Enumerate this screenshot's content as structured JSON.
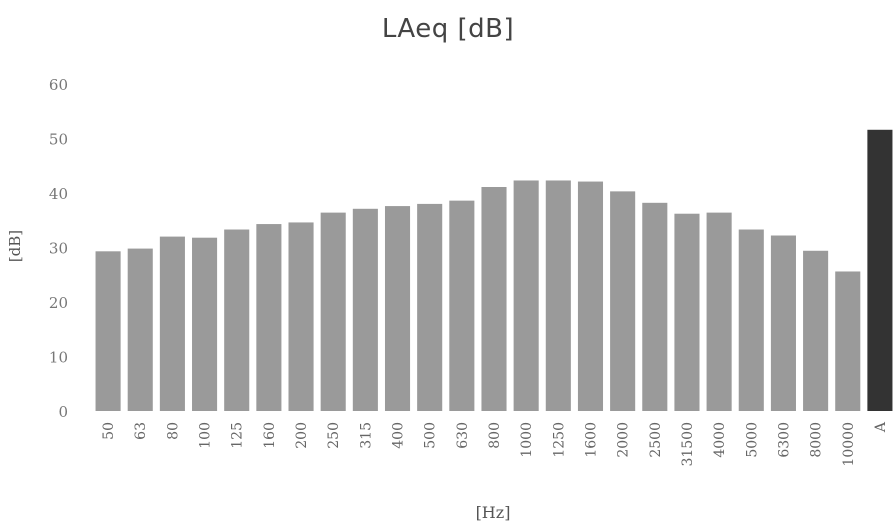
{
  "chart_data": {
    "type": "bar",
    "title": "LAeq [dB]",
    "xlabel": "[Hz]",
    "ylabel": "[dB]",
    "ylim": [
      0,
      60
    ],
    "yticks": [
      0,
      10,
      20,
      30,
      40,
      50,
      60
    ],
    "grid": false,
    "categories": [
      "50",
      "63",
      "80",
      "100",
      "125",
      "160",
      "200",
      "250",
      "315",
      "400",
      "500",
      "630",
      "800",
      "1000",
      "1250",
      "1600",
      "2000",
      "2500",
      "31500",
      "4000",
      "5000",
      "6300",
      "8000",
      "10000",
      "A"
    ],
    "values": [
      29.3,
      29.8,
      32.0,
      31.8,
      33.3,
      34.3,
      34.6,
      36.4,
      37.1,
      37.6,
      38.0,
      38.6,
      41.1,
      42.3,
      42.3,
      42.1,
      40.3,
      38.2,
      36.2,
      36.4,
      33.3,
      32.2,
      29.4,
      25.6,
      51.6
    ],
    "colors": {
      "bar": "#9a9a9a",
      "highlight_bar": "#333333",
      "text": "#555555"
    }
  }
}
